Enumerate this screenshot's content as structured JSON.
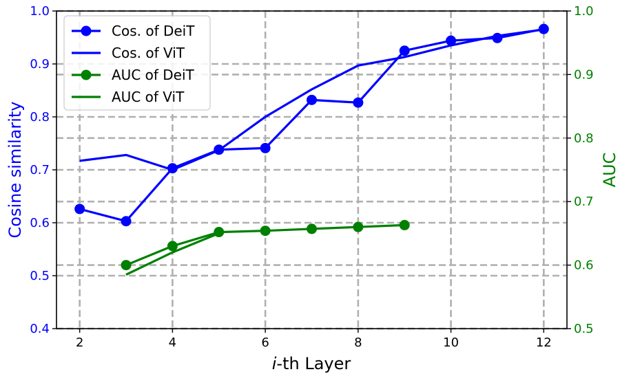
{
  "colors": {
    "left_axis": "#0000ff",
    "right_axis": "#008000",
    "grid": "#b0b0b0",
    "frame": "#000000"
  },
  "chart_data": {
    "type": "line",
    "title": "",
    "xlabel_italic": "i",
    "xlabel_rest": "-th Layer",
    "ylabel_left": "Cosine similarity",
    "ylabel_right": "AUC",
    "xlim": [
      1.5,
      12.5
    ],
    "ylim_left": [
      0.4,
      1.0
    ],
    "ylim_right": [
      0.5,
      1.0
    ],
    "x_ticks": [
      2,
      4,
      6,
      8,
      10,
      12
    ],
    "x_tick_labels": [
      "2",
      "4",
      "6",
      "8",
      "10",
      "12"
    ],
    "y_left_ticks": [
      0.4,
      0.5,
      0.6,
      0.7,
      0.8,
      0.9,
      1.0
    ],
    "y_left_tick_labels": [
      "0.4",
      "0.5",
      "0.6",
      "0.7",
      "0.8",
      "0.9",
      "1.0"
    ],
    "y_right_ticks": [
      0.5,
      0.6,
      0.7,
      0.8,
      0.9,
      1.0
    ],
    "y_right_tick_labels": [
      "0.5",
      "0.6",
      "0.7",
      "0.8",
      "0.9",
      "1.0"
    ],
    "grid": true,
    "legend_position": "top-left",
    "series": [
      {
        "name": "Cos. of DeiT",
        "axis": "left",
        "color": "#0000ff",
        "marker": "circle",
        "x": [
          2,
          3,
          4,
          5,
          6,
          7,
          8,
          9,
          10,
          11,
          12
        ],
        "values": [
          0.626,
          0.603,
          0.703,
          0.738,
          0.741,
          0.832,
          0.827,
          0.925,
          0.944,
          0.949,
          0.966
        ]
      },
      {
        "name": "Cos. of ViT",
        "axis": "left",
        "color": "#0000ff",
        "marker": "none",
        "x": [
          2,
          3,
          4,
          5,
          6,
          7,
          8,
          9,
          10,
          11,
          12
        ],
        "values": [
          0.717,
          0.728,
          0.7,
          0.737,
          0.8,
          0.852,
          0.897,
          0.913,
          0.935,
          0.953,
          0.965
        ]
      },
      {
        "name": "AUC of DeiT",
        "axis": "right",
        "color": "#008000",
        "marker": "circle",
        "x": [
          3,
          4,
          5,
          6,
          7,
          8,
          9
        ],
        "values": [
          0.6,
          0.63,
          0.652,
          0.654,
          0.657,
          0.66,
          0.663
        ]
      },
      {
        "name": "AUC of ViT",
        "axis": "right",
        "color": "#008000",
        "marker": "none",
        "x": [
          3,
          4,
          5
        ],
        "values": [
          0.585,
          0.62,
          0.65
        ]
      }
    ]
  }
}
